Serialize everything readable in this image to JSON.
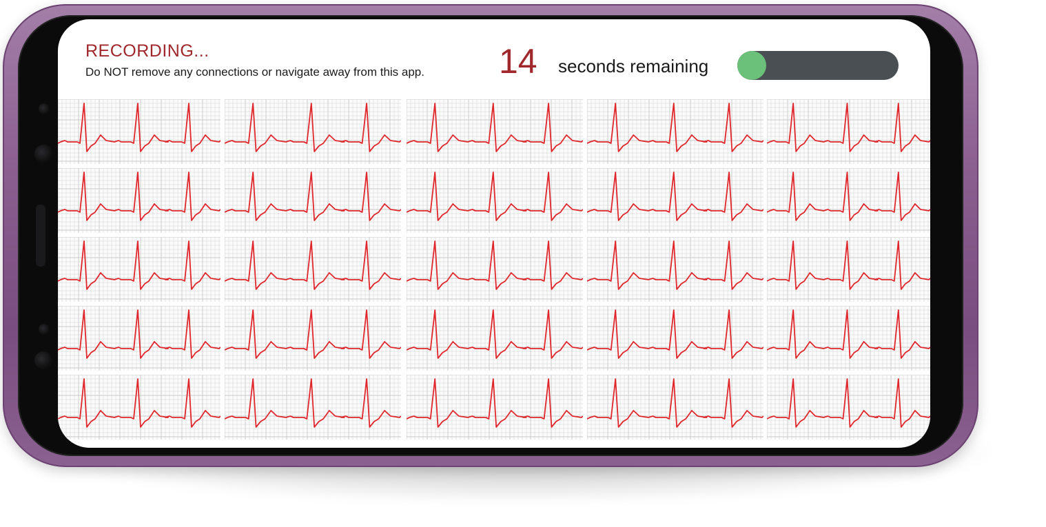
{
  "recording": {
    "title": "RECORDING...",
    "warning": "Do NOT remove any connections or navigate away from this app."
  },
  "countdown": {
    "seconds": "14",
    "label": "seconds remaining"
  },
  "progress": {
    "fraction": 0.18,
    "track_color": "#4a4f54",
    "fill_color": "#6cc17a"
  },
  "colors": {
    "accent": "#a0282c",
    "trace": "#e0262b",
    "grid": "#c9c9c9",
    "frame": "#8c5f91"
  },
  "ecg": {
    "columns": 5,
    "rows": 5,
    "beats_per_strip": 3
  }
}
